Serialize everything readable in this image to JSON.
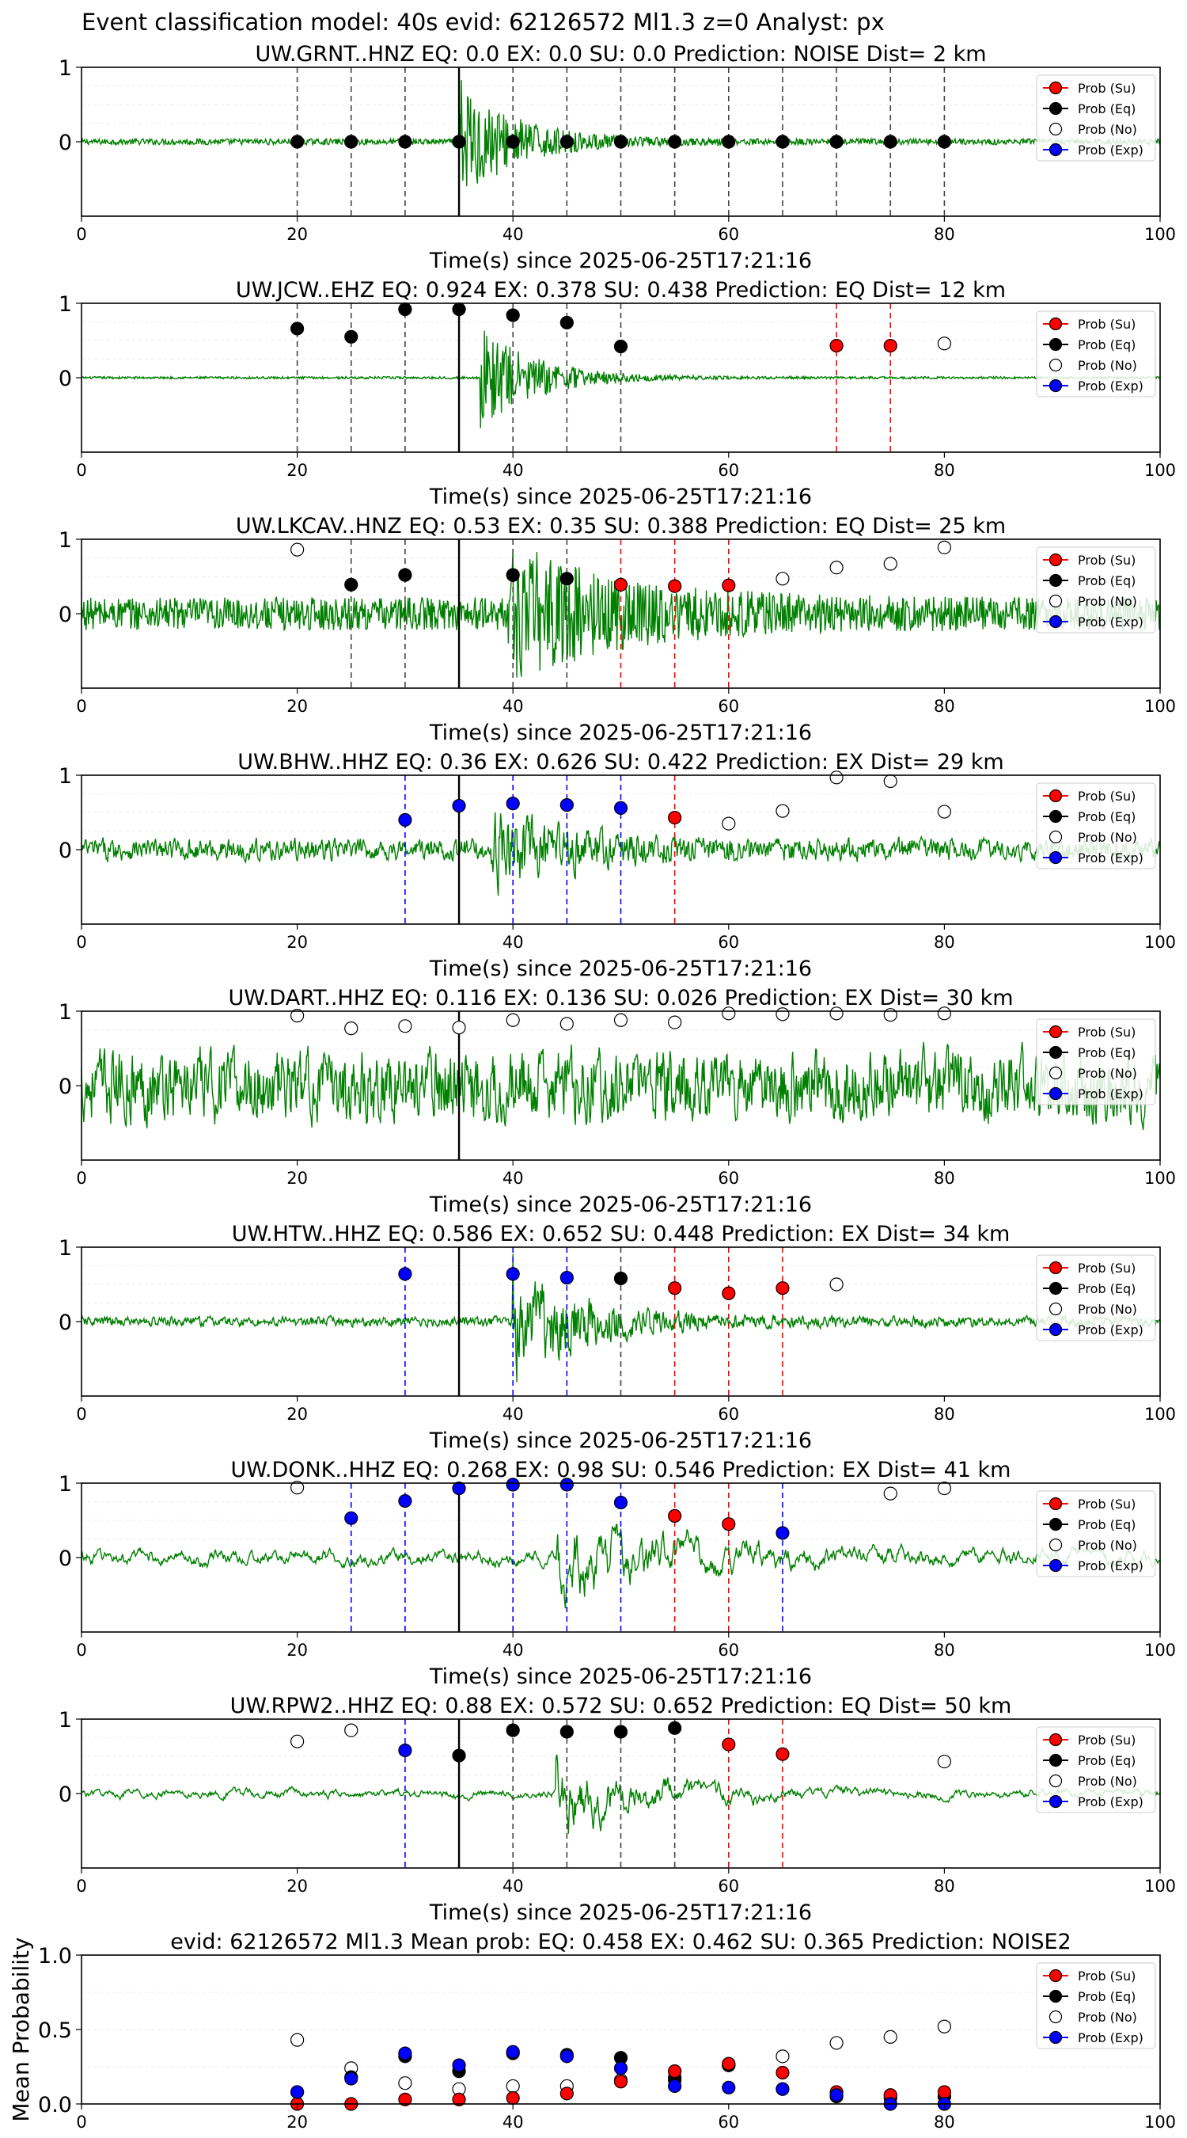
{
  "figure": {
    "suptitle": "Event classification model: 40s evid: 62126572 Ml1.3 z=0 Analyst: px",
    "xlabel": "Time(s) since 2025-06-25T17:21:16",
    "legend_labels": [
      "Prob (Su)",
      "Prob (Eq)",
      "Prob (No)",
      "Prob (Exp)"
    ],
    "colors": {
      "waveform": "#008000",
      "su": "#ff0000",
      "eq": "#000000",
      "no": "#ffffff",
      "exp": "#0000ff",
      "event_line": "#000000",
      "dash_eq": "#444444",
      "dash_su": "#ff0000",
      "dash_exp": "#0000ff"
    }
  },
  "chart_data": [
    {
      "type": "line",
      "title": "UW.GRNT..HNZ   EQ: 0.0  EX: 0.0  SU: 0.0   Prediction: NOISE    Dist= 2 km",
      "xlim": [
        0,
        100
      ],
      "ylim": [
        -1,
        1
      ],
      "xticks": [
        0,
        20,
        40,
        60,
        80,
        100
      ],
      "yticks": [
        0,
        1
      ],
      "event_time": 35,
      "waveform": {
        "amplitude": 0.04,
        "noise": "high",
        "event_amp": 0.85,
        "onset": 35,
        "decay": 5
      },
      "points": {
        "eq": [
          [
            20,
            0
          ],
          [
            25,
            0
          ],
          [
            30,
            0
          ],
          [
            35,
            0
          ],
          [
            40,
            0
          ],
          [
            45,
            0
          ],
          [
            50,
            0
          ],
          [
            55,
            0
          ],
          [
            60,
            0
          ],
          [
            65,
            0
          ],
          [
            70,
            0
          ],
          [
            75,
            0
          ],
          [
            80,
            0
          ]
        ],
        "no": [],
        "su": [],
        "exp": []
      },
      "dashed_lines": [
        {
          "x": 20,
          "cls": "eq"
        },
        {
          "x": 25,
          "cls": "eq"
        },
        {
          "x": 30,
          "cls": "eq"
        },
        {
          "x": 35,
          "cls": "eq"
        },
        {
          "x": 40,
          "cls": "eq"
        },
        {
          "x": 45,
          "cls": "eq"
        },
        {
          "x": 50,
          "cls": "eq"
        },
        {
          "x": 55,
          "cls": "eq"
        },
        {
          "x": 60,
          "cls": "eq"
        },
        {
          "x": 65,
          "cls": "eq"
        },
        {
          "x": 70,
          "cls": "eq"
        },
        {
          "x": 75,
          "cls": "eq"
        },
        {
          "x": 80,
          "cls": "eq"
        }
      ]
    },
    {
      "type": "line",
      "title": "UW.JCW..EHZ   EQ: 0.924  EX: 0.378  SU: 0.438   Prediction: EQ    Dist= 12 km",
      "xlim": [
        0,
        100
      ],
      "ylim": [
        -1,
        1
      ],
      "xticks": [
        0,
        20,
        40,
        60,
        80,
        100
      ],
      "yticks": [
        0,
        1
      ],
      "event_time": 35,
      "waveform": {
        "amplitude": 0.015,
        "noise": "high",
        "event_amp": 0.7,
        "onset": 37,
        "decay": 5
      },
      "points": {
        "eq": [
          [
            20,
            0.66
          ],
          [
            25,
            0.55
          ],
          [
            30,
            0.92
          ],
          [
            35,
            0.92
          ],
          [
            40,
            0.84
          ],
          [
            45,
            0.74
          ],
          [
            50,
            0.42
          ]
        ],
        "su": [
          [
            70,
            0.43
          ],
          [
            75,
            0.43
          ]
        ],
        "no": [
          [
            80,
            0.46
          ]
        ],
        "exp": []
      },
      "dashed_lines": [
        {
          "x": 20,
          "cls": "eq"
        },
        {
          "x": 25,
          "cls": "eq"
        },
        {
          "x": 30,
          "cls": "eq"
        },
        {
          "x": 35,
          "cls": "eq"
        },
        {
          "x": 40,
          "cls": "eq"
        },
        {
          "x": 45,
          "cls": "eq"
        },
        {
          "x": 50,
          "cls": "eq"
        },
        {
          "x": 70,
          "cls": "su"
        },
        {
          "x": 75,
          "cls": "su"
        }
      ]
    },
    {
      "type": "line",
      "title": "UW.LKCAV..HNZ   EQ: 0.53  EX: 0.35  SU: 0.388   Prediction: EQ    Dist= 25 km",
      "xlim": [
        0,
        100
      ],
      "ylim": [
        -1,
        1
      ],
      "xticks": [
        0,
        20,
        40,
        60,
        80,
        100
      ],
      "yticks": [
        0,
        1
      ],
      "event_time": 35,
      "waveform": {
        "amplitude": 0.22,
        "noise": "high",
        "event_amp": 0.8,
        "onset": 39.5,
        "decay": 10
      },
      "points": {
        "no": [
          [
            20,
            0.86
          ],
          [
            65,
            0.47
          ],
          [
            70,
            0.62
          ],
          [
            75,
            0.67
          ],
          [
            80,
            0.89
          ]
        ],
        "eq": [
          [
            25,
            0.39
          ],
          [
            30,
            0.52
          ],
          [
            40,
            0.52
          ],
          [
            45,
            0.47
          ]
        ],
        "su": [
          [
            50,
            0.39
          ],
          [
            55,
            0.37
          ],
          [
            60,
            0.38
          ]
        ],
        "exp": []
      },
      "dashed_lines": [
        {
          "x": 25,
          "cls": "eq"
        },
        {
          "x": 30,
          "cls": "eq"
        },
        {
          "x": 40,
          "cls": "eq"
        },
        {
          "x": 45,
          "cls": "eq"
        },
        {
          "x": 50,
          "cls": "su"
        },
        {
          "x": 55,
          "cls": "su"
        },
        {
          "x": 60,
          "cls": "su"
        }
      ]
    },
    {
      "type": "line",
      "title": "UW.BHW..HHZ   EQ: 0.36  EX: 0.626  SU: 0.422   Prediction: EX    Dist= 29 km",
      "xlim": [
        0,
        100
      ],
      "ylim": [
        -1,
        1
      ],
      "xticks": [
        0,
        20,
        40,
        60,
        80,
        100
      ],
      "yticks": [
        0,
        1
      ],
      "event_time": 35,
      "waveform": {
        "amplitude": 0.15,
        "noise": "mid",
        "event_amp": 0.45,
        "onset": 38,
        "decay": 8
      },
      "points": {
        "exp": [
          [
            30,
            0.4
          ],
          [
            35,
            0.59
          ],
          [
            40,
            0.62
          ],
          [
            45,
            0.6
          ],
          [
            50,
            0.56
          ]
        ],
        "su": [
          [
            55,
            0.43
          ]
        ],
        "no": [
          [
            60,
            0.35
          ],
          [
            65,
            0.52
          ],
          [
            70,
            0.97
          ],
          [
            75,
            0.92
          ],
          [
            80,
            0.51
          ]
        ],
        "eq": []
      },
      "dashed_lines": [
        {
          "x": 30,
          "cls": "exp"
        },
        {
          "x": 40,
          "cls": "exp"
        },
        {
          "x": 45,
          "cls": "exp"
        },
        {
          "x": 50,
          "cls": "exp"
        },
        {
          "x": 55,
          "cls": "su"
        }
      ]
    },
    {
      "type": "line",
      "title": "UW.DART..HHZ   EQ: 0.116  EX: 0.136  SU: 0.026   Prediction: EX    Dist= 30 km",
      "xlim": [
        0,
        100
      ],
      "ylim": [
        -1,
        1
      ],
      "xticks": [
        0,
        20,
        40,
        60,
        80,
        100
      ],
      "yticks": [
        0,
        1
      ],
      "event_time": 35,
      "waveform": {
        "amplitude": 0.5,
        "noise": "mid",
        "event_amp": 0.0,
        "onset": 0,
        "decay": 1
      },
      "points": {
        "no": [
          [
            20,
            0.94
          ],
          [
            25,
            0.77
          ],
          [
            30,
            0.8
          ],
          [
            35,
            0.78
          ],
          [
            40,
            0.88
          ],
          [
            45,
            0.83
          ],
          [
            50,
            0.88
          ],
          [
            55,
            0.85
          ],
          [
            60,
            0.97
          ],
          [
            65,
            0.96
          ],
          [
            70,
            0.97
          ],
          [
            75,
            0.95
          ],
          [
            80,
            0.97
          ]
        ],
        "eq": [],
        "su": [],
        "exp": []
      },
      "dashed_lines": []
    },
    {
      "type": "line",
      "title": "UW.HTW..HHZ   EQ: 0.586  EX: 0.652  SU: 0.448   Prediction: EX    Dist= 34 km",
      "xlim": [
        0,
        100
      ],
      "ylim": [
        -1,
        1
      ],
      "xticks": [
        0,
        20,
        40,
        60,
        80,
        100
      ],
      "yticks": [
        0,
        1
      ],
      "event_time": 35,
      "waveform": {
        "amplitude": 0.07,
        "noise": "mid",
        "event_amp": 0.75,
        "onset": 40,
        "decay": 7
      },
      "points": {
        "exp": [
          [
            30,
            0.64
          ],
          [
            40,
            0.64
          ],
          [
            45,
            0.59
          ]
        ],
        "eq": [
          [
            50,
            0.58
          ]
        ],
        "su": [
          [
            55,
            0.45
          ],
          [
            60,
            0.38
          ],
          [
            65,
            0.45
          ]
        ],
        "no": [
          [
            70,
            0.5
          ]
        ]
      },
      "dashed_lines": [
        {
          "x": 30,
          "cls": "exp"
        },
        {
          "x": 40,
          "cls": "exp"
        },
        {
          "x": 45,
          "cls": "exp"
        },
        {
          "x": 50,
          "cls": "eq"
        },
        {
          "x": 55,
          "cls": "su"
        },
        {
          "x": 60,
          "cls": "su"
        },
        {
          "x": 65,
          "cls": "su"
        }
      ]
    },
    {
      "type": "line",
      "title": "UW.DONK..HHZ   EQ: 0.268  EX: 0.98  SU: 0.546   Prediction: EX    Dist= 41 km",
      "xlim": [
        0,
        100
      ],
      "ylim": [
        -1,
        1
      ],
      "xticks": [
        0,
        20,
        40,
        60,
        80,
        100
      ],
      "yticks": [
        0,
        1
      ],
      "event_time": 35,
      "waveform": {
        "amplitude": 0.12,
        "noise": "low",
        "event_amp": 0.65,
        "onset": 44,
        "decay": 10
      },
      "points": {
        "no": [
          [
            20,
            0.94
          ],
          [
            75,
            0.86
          ],
          [
            80,
            0.93
          ]
        ],
        "exp": [
          [
            25,
            0.53
          ],
          [
            30,
            0.76
          ],
          [
            35,
            0.93
          ],
          [
            40,
            0.98
          ],
          [
            45,
            0.98
          ],
          [
            50,
            0.74
          ],
          [
            65,
            0.33
          ]
        ],
        "su": [
          [
            55,
            0.56
          ],
          [
            60,
            0.45
          ]
        ],
        "eq": []
      },
      "dashed_lines": [
        {
          "x": 25,
          "cls": "exp"
        },
        {
          "x": 30,
          "cls": "exp"
        },
        {
          "x": 40,
          "cls": "exp"
        },
        {
          "x": 45,
          "cls": "exp"
        },
        {
          "x": 50,
          "cls": "exp"
        },
        {
          "x": 55,
          "cls": "su"
        },
        {
          "x": 60,
          "cls": "su"
        },
        {
          "x": 65,
          "cls": "exp"
        }
      ]
    },
    {
      "type": "line",
      "title": "UW.RPW2..HHZ   EQ: 0.88  EX: 0.572  SU: 0.652   Prediction: EQ    Dist= 50 km",
      "xlim": [
        0,
        100
      ],
      "ylim": [
        -1,
        1
      ],
      "xticks": [
        0,
        20,
        40,
        60,
        80,
        100
      ],
      "yticks": [
        0,
        1
      ],
      "event_time": 35,
      "waveform": {
        "amplitude": 0.07,
        "noise": "low",
        "event_amp": 0.6,
        "onset": 44,
        "decay": 8
      },
      "points": {
        "no": [
          [
            20,
            0.7
          ],
          [
            25,
            0.85
          ],
          [
            80,
            0.43
          ]
        ],
        "exp": [
          [
            30,
            0.58
          ]
        ],
        "eq": [
          [
            35,
            0.51
          ],
          [
            40,
            0.85
          ],
          [
            45,
            0.83
          ],
          [
            50,
            0.83
          ],
          [
            55,
            0.88
          ]
        ],
        "su": [
          [
            60,
            0.66
          ],
          [
            65,
            0.53
          ]
        ]
      },
      "dashed_lines": [
        {
          "x": 30,
          "cls": "exp"
        },
        {
          "x": 40,
          "cls": "eq"
        },
        {
          "x": 45,
          "cls": "eq"
        },
        {
          "x": 50,
          "cls": "eq"
        },
        {
          "x": 55,
          "cls": "eq"
        },
        {
          "x": 60,
          "cls": "su"
        },
        {
          "x": 65,
          "cls": "su"
        }
      ]
    },
    {
      "type": "scatter",
      "title": "evid: 62126572  Ml1.3   Mean prob:   EQ: 0.458  EX: 0.462  SU: 0.365   Prediction: NOISE2",
      "ylabel": "Mean Probability",
      "xlim": [
        0,
        100
      ],
      "ylim": [
        0,
        1
      ],
      "xticks": [
        0,
        20,
        40,
        60,
        80,
        100
      ],
      "yticks": [
        0.0,
        0.5,
        1.0
      ],
      "ytick_labels": [
        "0.0",
        "0.5",
        "1.0"
      ],
      "points": {
        "no": [
          [
            20,
            0.43
          ],
          [
            25,
            0.24
          ],
          [
            30,
            0.14
          ],
          [
            35,
            0.1
          ],
          [
            40,
            0.12
          ],
          [
            45,
            0.12
          ],
          [
            50,
            0.16
          ],
          [
            55,
            0.18
          ],
          [
            60,
            0.26
          ],
          [
            65,
            0.32
          ],
          [
            70,
            0.41
          ],
          [
            75,
            0.45
          ],
          [
            80,
            0.52
          ]
        ],
        "eq": [
          [
            20,
            0.08
          ],
          [
            25,
            0.18
          ],
          [
            30,
            0.32
          ],
          [
            35,
            0.22
          ],
          [
            40,
            0.34
          ],
          [
            45,
            0.33
          ],
          [
            50,
            0.31
          ],
          [
            55,
            0.16
          ],
          [
            60,
            0.26
          ],
          [
            65,
            0.1
          ],
          [
            70,
            0.05
          ],
          [
            75,
            0.04
          ],
          [
            80,
            0.05
          ]
        ],
        "su": [
          [
            20,
            0.0
          ],
          [
            25,
            0.0
          ],
          [
            30,
            0.03
          ],
          [
            35,
            0.03
          ],
          [
            40,
            0.04
          ],
          [
            45,
            0.07
          ],
          [
            50,
            0.15
          ],
          [
            55,
            0.22
          ],
          [
            60,
            0.27
          ],
          [
            65,
            0.21
          ],
          [
            70,
            0.08
          ],
          [
            75,
            0.06
          ],
          [
            80,
            0.08
          ]
        ],
        "exp": [
          [
            20,
            0.08
          ],
          [
            25,
            0.17
          ],
          [
            30,
            0.34
          ],
          [
            35,
            0.26
          ],
          [
            40,
            0.35
          ],
          [
            45,
            0.32
          ],
          [
            50,
            0.24
          ],
          [
            55,
            0.12
          ],
          [
            60,
            0.11
          ],
          [
            65,
            0.1
          ],
          [
            70,
            0.06
          ],
          [
            75,
            0.0
          ],
          [
            80,
            0.0
          ]
        ]
      }
    }
  ]
}
